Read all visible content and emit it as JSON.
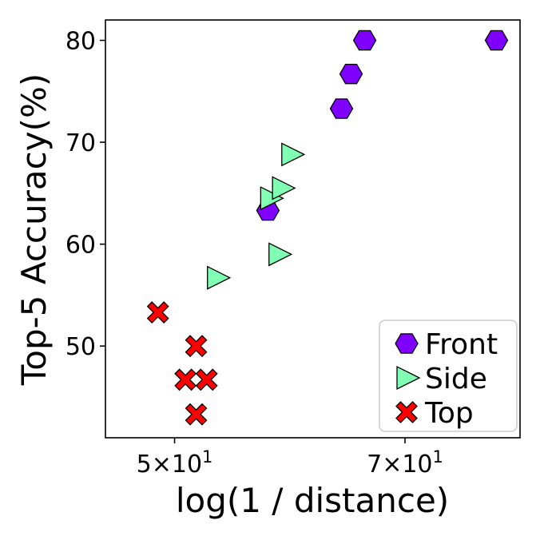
{
  "chart_data": {
    "type": "scatter",
    "xlabel": "log(1 / distance)",
    "ylabel": "Top-5 Accuracy(%)",
    "x_scale": "log",
    "xlim": [
      45.2,
      82.8
    ],
    "ylim": [
      41,
      82
    ],
    "xticks": [
      {
        "value": 50,
        "label_base": "5×10",
        "label_exp": "1"
      },
      {
        "value": 70,
        "label_base": "7×10",
        "label_exp": "1"
      }
    ],
    "yticks": [
      {
        "value": 50,
        "label": "50"
      },
      {
        "value": 60,
        "label": "60"
      },
      {
        "value": 70,
        "label": "70"
      },
      {
        "value": 80,
        "label": "80"
      }
    ],
    "grid": false,
    "legend_position": "lower-right",
    "series": [
      {
        "name": "Front",
        "marker": "hexagon",
        "color": "#7f00ff",
        "points": [
          {
            "x": 57.3,
            "y": 63.3
          },
          {
            "x": 63.8,
            "y": 73.3
          },
          {
            "x": 64.7,
            "y": 76.7
          },
          {
            "x": 66.0,
            "y": 80.0
          },
          {
            "x": 80.0,
            "y": 80.0
          }
        ]
      },
      {
        "name": "Side",
        "marker": "triangle-right",
        "color": "#80ffb4",
        "points": [
          {
            "x": 53.2,
            "y": 56.7
          },
          {
            "x": 57.5,
            "y": 64.5
          },
          {
            "x": 58.2,
            "y": 59.0
          },
          {
            "x": 58.5,
            "y": 65.5
          },
          {
            "x": 59.3,
            "y": 68.8
          }
        ]
      },
      {
        "name": "Top",
        "marker": "x-cross",
        "color": "#ff0000",
        "points": [
          {
            "x": 48.8,
            "y": 53.3
          },
          {
            "x": 50.8,
            "y": 46.7
          },
          {
            "x": 51.6,
            "y": 50.0
          },
          {
            "x": 51.6,
            "y": 43.3
          },
          {
            "x": 52.4,
            "y": 46.7
          }
        ]
      }
    ]
  }
}
